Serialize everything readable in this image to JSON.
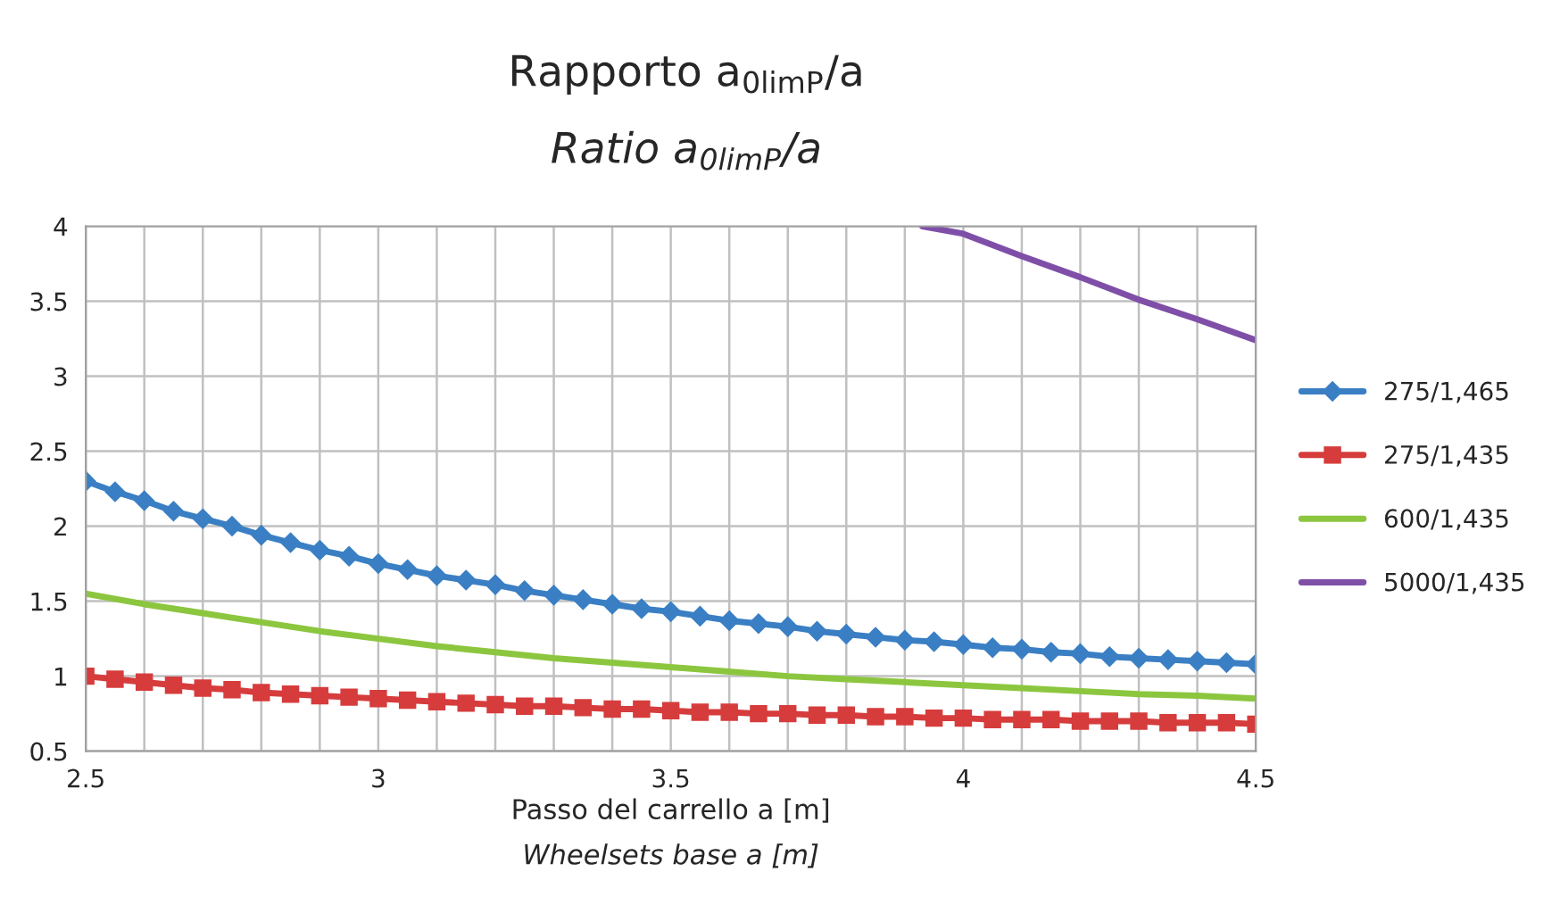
{
  "chart_data": {
    "type": "line",
    "title": "Rapporto a$_{0limP}$/a",
    "subtitle": "Ratio a$_{0limP}$/a",
    "xlabel": "Passo del carrello a [m]",
    "annotations": [
      "Wheelsets base a [m]"
    ],
    "xlim": [
      2.5,
      4.5
    ],
    "ylim": [
      0.5,
      4
    ],
    "xticks": [
      2.5,
      {
        "value": 2.6,
        "label": null
      },
      {
        "value": 2.7,
        "label": null
      },
      {
        "value": 2.8,
        "label": null
      },
      {
        "value": 2.9,
        "label": null
      },
      3,
      {
        "value": 3.1,
        "label": null
      },
      {
        "value": 3.2,
        "label": null
      },
      {
        "value": 3.3,
        "label": null
      },
      {
        "value": 3.4,
        "label": null
      },
      3.5,
      {
        "value": 3.6,
        "label": null
      },
      {
        "value": 3.7,
        "label": null
      },
      {
        "value": 3.8,
        "label": null
      },
      {
        "value": 3.9,
        "label": null
      },
      4,
      {
        "value": 4.1,
        "label": null
      },
      {
        "value": 4.2,
        "label": null
      },
      {
        "value": 4.3,
        "label": null
      },
      {
        "value": 4.4,
        "label": null
      },
      4.5
    ],
    "yticks": [
      0.5,
      1,
      1.5,
      2,
      2.5,
      3,
      3.5,
      4
    ],
    "grid": true,
    "legend": "right",
    "series": [
      {
        "name": "275/1,465",
        "color": "#3a7fc4",
        "marker": "diamond",
        "x": [
          2.5,
          2.55,
          2.6,
          2.65,
          2.7,
          2.75,
          2.8,
          2.85,
          2.9,
          2.95,
          3.0,
          3.05,
          3.1,
          3.15,
          3.2,
          3.25,
          3.3,
          3.35,
          3.4,
          3.45,
          3.5,
          3.55,
          3.6,
          3.65,
          3.7,
          3.75,
          3.8,
          3.85,
          3.9,
          3.95,
          4.0,
          4.05,
          4.1,
          4.15,
          4.2,
          4.25,
          4.3,
          4.35,
          4.4,
          4.45,
          4.5
        ],
        "values": [
          2.3,
          2.23,
          2.17,
          2.1,
          2.05,
          2.0,
          1.94,
          1.89,
          1.84,
          1.8,
          1.75,
          1.71,
          1.67,
          1.64,
          1.61,
          1.57,
          1.54,
          1.51,
          1.48,
          1.45,
          1.43,
          1.4,
          1.37,
          1.35,
          1.33,
          1.3,
          1.28,
          1.26,
          1.24,
          1.23,
          1.21,
          1.19,
          1.18,
          1.16,
          1.15,
          1.13,
          1.12,
          1.11,
          1.1,
          1.09,
          1.08
        ]
      },
      {
        "name": "275/1,435",
        "color": "#d63c3c",
        "marker": "square",
        "x": [
          2.5,
          2.55,
          2.6,
          2.65,
          2.7,
          2.75,
          2.8,
          2.85,
          2.9,
          2.95,
          3.0,
          3.05,
          3.1,
          3.15,
          3.2,
          3.25,
          3.3,
          3.35,
          3.4,
          3.45,
          3.5,
          3.55,
          3.6,
          3.65,
          3.7,
          3.75,
          3.8,
          3.85,
          3.9,
          3.95,
          4.0,
          4.05,
          4.1,
          4.15,
          4.2,
          4.25,
          4.3,
          4.35,
          4.4,
          4.45,
          4.5
        ],
        "values": [
          1.0,
          0.98,
          0.96,
          0.94,
          0.92,
          0.91,
          0.89,
          0.88,
          0.87,
          0.86,
          0.85,
          0.84,
          0.83,
          0.82,
          0.81,
          0.8,
          0.8,
          0.79,
          0.78,
          0.78,
          0.77,
          0.76,
          0.76,
          0.75,
          0.75,
          0.74,
          0.74,
          0.73,
          0.73,
          0.72,
          0.72,
          0.71,
          0.71,
          0.71,
          0.7,
          0.7,
          0.7,
          0.69,
          0.69,
          0.69,
          0.68
        ]
      },
      {
        "name": "600/1,435",
        "color": "#8cc63f",
        "marker": "none",
        "x": [
          2.5,
          2.6,
          2.7,
          2.8,
          2.9,
          3.0,
          3.1,
          3.2,
          3.3,
          3.4,
          3.5,
          3.6,
          3.7,
          3.8,
          3.9,
          4.0,
          4.1,
          4.2,
          4.3,
          4.4,
          4.5
        ],
        "values": [
          1.55,
          1.48,
          1.42,
          1.36,
          1.3,
          1.25,
          1.2,
          1.16,
          1.12,
          1.09,
          1.06,
          1.03,
          1.0,
          0.98,
          0.96,
          0.94,
          0.92,
          0.9,
          0.88,
          0.87,
          0.85
        ]
      },
      {
        "name": "5000/1,435",
        "color": "#7f4fa8",
        "marker": "none",
        "x": [
          3.93,
          4.0,
          4.1,
          4.2,
          4.3,
          4.4,
          4.5
        ],
        "values": [
          4.0,
          3.95,
          3.8,
          3.66,
          3.51,
          3.38,
          3.24
        ]
      }
    ]
  }
}
